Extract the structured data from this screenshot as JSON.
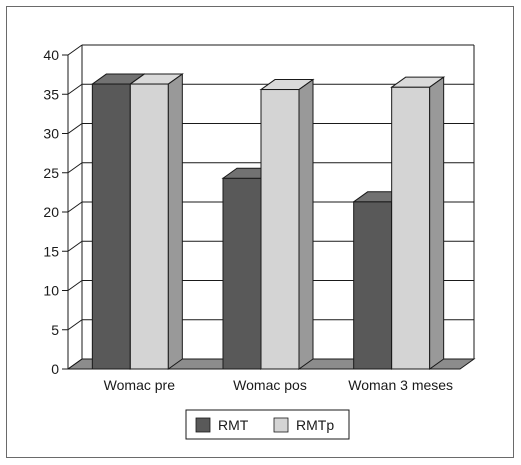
{
  "chart_data": {
    "type": "bar",
    "categories": [
      "Womac pre",
      "Womac pos",
      "Woman 3 meses"
    ],
    "series": [
      {
        "name": "RMT",
        "values": [
          36.3,
          24.3,
          21.3
        ]
      },
      {
        "name": "RMTp",
        "values": [
          36.3,
          35.6,
          35.9
        ]
      }
    ],
    "ylim": [
      0,
      40
    ],
    "yticks": [
      "0",
      "5",
      "10",
      "15",
      "20",
      "25",
      "30",
      "35",
      "40"
    ],
    "grid": true,
    "legend_position": "bottom-center",
    "three_d": true,
    "colors": {
      "RMT": "#595959",
      "RMTp": "#d4d4d4",
      "floor": "#8c8c8c",
      "frame": "#6a6a6a"
    }
  }
}
